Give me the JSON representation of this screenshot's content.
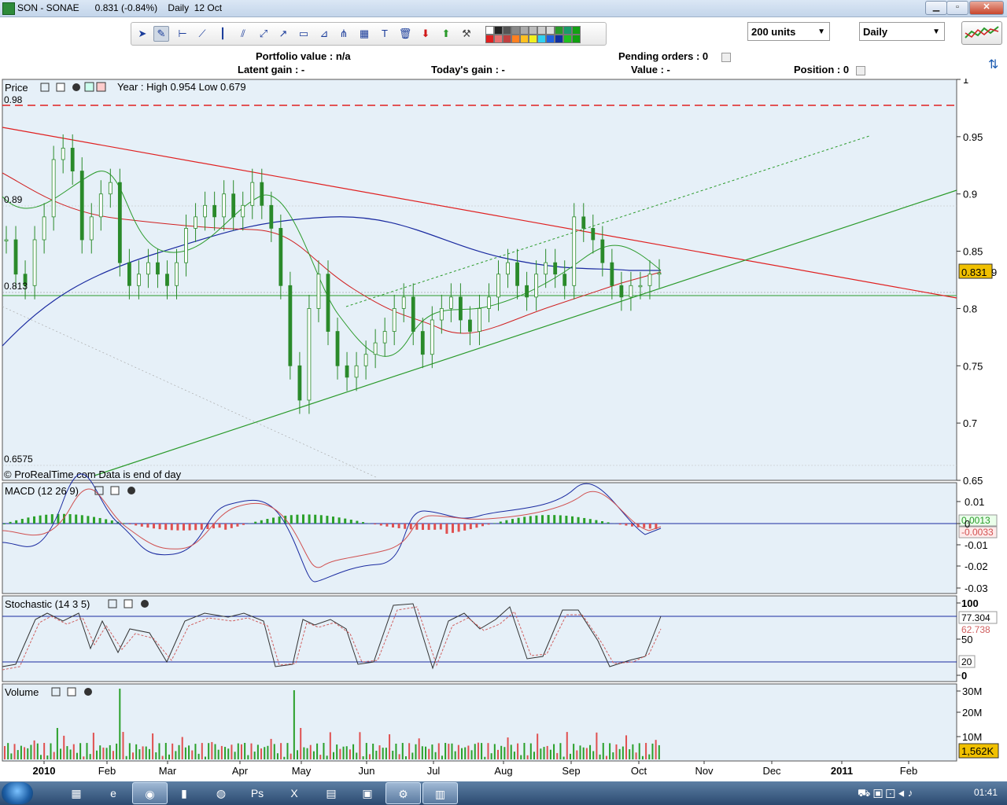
{
  "window": {
    "title": "SON - SONAE      0.831 (-0.84%)    Daily  12 Oct",
    "min_label": "▁",
    "max_label": "▫",
    "close_label": "✕"
  },
  "toolbar": {
    "units_value": "200 units",
    "period_value": "Daily"
  },
  "portfolio": {
    "value": "Portfolio value : n/a",
    "pending": "Pending orders : 0",
    "latent": "Latent gain : -",
    "today": "Today's gain : -",
    "val": "Value : -",
    "position": "Position : 0"
  },
  "price_panel": {
    "label": "Price",
    "year_info": "Year : High 0.954 Low 0.679",
    "copyright": "© ProRealTime.com Data is end of day",
    "left_labels": [
      "0.98",
      "0.89",
      "0.813",
      "0.6575"
    ],
    "last_price": "0.831",
    "last_price_suffix": "9"
  },
  "macd_panel": {
    "label": "MACD (12 26 9)",
    "value_macd": "0.0013",
    "value_signal": "-0.0033"
  },
  "stoch_panel": {
    "label": "Stochastic (14 3 5)",
    "value_k": "77.304",
    "value_d": "62.738",
    "level_label": "20"
  },
  "volume_panel": {
    "label": "Volume",
    "last_volume": "1,562K"
  },
  "taskbar": {
    "clock": "01:41"
  },
  "colors": {
    "bg_chart": "#e6f0f8",
    "candle": "#2a8a2a",
    "trend_red": "#e03030",
    "trend_green": "#2a9a2a",
    "ma_blue": "#1a2aa0"
  },
  "chart_data": [
    {
      "type": "line",
      "title": "Price",
      "ylim": [
        0.65,
        1.0
      ],
      "yticks": [
        "1",
        "0.95",
        "0.9",
        "0.85",
        "0.8",
        "0.75",
        "0.7",
        "0.65"
      ],
      "x_labels": [
        "2010",
        "Feb",
        "Mar",
        "Apr",
        "May",
        "Jun",
        "Jul",
        "Aug",
        "Sep",
        "Oct",
        "Nov",
        "Dec",
        "2011",
        "Feb"
      ],
      "series": [
        {
          "name": "close",
          "values": [
            0.86,
            0.83,
            0.82,
            0.86,
            0.88,
            0.93,
            0.94,
            0.92,
            0.86,
            0.88,
            0.9,
            0.91,
            0.84,
            0.82,
            0.83,
            0.84,
            0.83,
            0.82,
            0.84,
            0.87,
            0.88,
            0.89,
            0.88,
            0.9,
            0.88,
            0.89,
            0.91,
            0.89,
            0.87,
            0.82,
            0.75,
            0.72,
            0.8,
            0.83,
            0.78,
            0.75,
            0.74,
            0.75,
            0.76,
            0.77,
            0.78,
            0.8,
            0.81,
            0.78,
            0.76,
            0.79,
            0.8,
            0.81,
            0.79,
            0.78,
            0.8,
            0.81,
            0.83,
            0.84,
            0.82,
            0.81,
            0.83,
            0.84,
            0.83,
            0.82,
            0.88,
            0.87,
            0.86,
            0.84,
            0.82,
            0.81,
            0.82,
            0.82,
            0.83,
            0.831
          ]
        }
      ]
    },
    {
      "type": "bar",
      "title": "MACD (12 26 9)",
      "yticks": [
        "0.01",
        "0",
        "-0.01",
        "-0.02",
        "-0.03"
      ]
    },
    {
      "type": "line",
      "title": "Stochastic (14 3 5)",
      "yticks": [
        "100",
        "50",
        "0"
      ]
    },
    {
      "type": "bar",
      "title": "Volume",
      "yticks": [
        "30M",
        "20M",
        "10M"
      ]
    }
  ]
}
